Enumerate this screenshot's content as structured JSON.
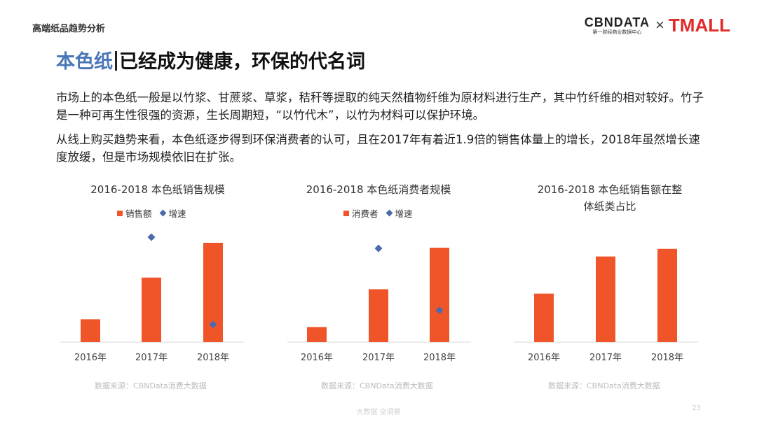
{
  "header": {
    "section_label": "高端纸品趋势分析",
    "logo_cbndata": "CBNDATA",
    "logo_cbndata_sub": "第一财经商业数据中心",
    "logo_times": "×",
    "logo_tmall": "TMALL"
  },
  "heading": {
    "accent": "本色纸",
    "rest": "已经成为健康，环保的代名词"
  },
  "paragraphs": [
    "市场上的本色纸一般是以竹浆、甘蔗浆、草浆，秸秆等提取的纯天然植物纤维为原材料进行生产，其中竹纤维的相对较好。竹子是一种可再生性很强的资源，生长周期短，“以竹代木”，以竹为材料可以保护环境。",
    "从线上购买趋势来看，本色纸逐步得到环保消费者的认可，且在2017年有着近1.9倍的销售体量上的增长，2018年虽然增长速度放缓，但是市场规模依旧在扩张。"
  ],
  "colors": {
    "bar": "#f0552a",
    "marker": "#4b6aab",
    "accent": "#4a76b8",
    "axis": "#d9d9d9"
  },
  "chart_data": [
    {
      "type": "bar",
      "title": "2016-2018 本色纸销售规模",
      "categories": [
        "2016年",
        "2017年",
        "2018年"
      ],
      "series": [
        {
          "name": "销售额",
          "type": "bar",
          "values": [
            0.23,
            0.65,
            1.0
          ]
        },
        {
          "name": "增速",
          "type": "scatter",
          "values": [
            null,
            1.9,
            0.32
          ]
        }
      ],
      "source": "数据来源：CBNData消费大数据"
    },
    {
      "type": "bar",
      "title": "2016-2018 本色纸消费者规模",
      "categories": [
        "2016年",
        "2017年",
        "2018年"
      ],
      "series": [
        {
          "name": "消费者",
          "type": "bar",
          "values": [
            0.16,
            0.56,
            1.0
          ]
        },
        {
          "name": "增速",
          "type": "scatter",
          "values": [
            null,
            1.62,
            0.55
          ]
        }
      ],
      "source": "数据来源：CBNData消费大数据"
    },
    {
      "type": "bar",
      "title": "2016-2018 本色纸销售额在整体纸类占比",
      "title_lines": [
        "2016-2018 本色纸销售额在整",
        "体纸类占比"
      ],
      "categories": [
        "2016年",
        "2017年",
        "2018年"
      ],
      "series": [
        {
          "name": "占比",
          "values": [
            0.51,
            0.9,
            0.98
          ]
        }
      ],
      "source": "数据来源：CBNData消费大数据"
    }
  ],
  "footer": {
    "text": "大数据 全洞察",
    "page": "23"
  }
}
